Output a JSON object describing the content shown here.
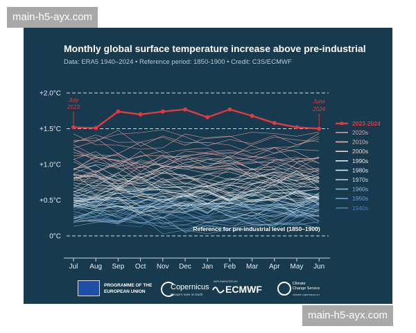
{
  "watermark": "main-h5-ayx.com",
  "chart_data": {
    "type": "line",
    "title": "Monthly global surface temperature increase above pre-industrial",
    "subtitle": "Data: ERA5 1940–2024 • Reference period: 1850-1900 • Credit: C3S/ECMWF",
    "categories": [
      "Jul",
      "Aug",
      "Sep",
      "Oct",
      "Nov",
      "Dec",
      "Jan",
      "Feb",
      "Mar",
      "Apr",
      "May",
      "Jun"
    ],
    "y_ticks": [
      {
        "value": 2.0,
        "label": "+2.0°C"
      },
      {
        "value": 1.5,
        "label": "+1.5°C"
      },
      {
        "value": 1.0,
        "label": "+1.0°C"
      },
      {
        "value": 0.5,
        "label": "+0.5°C"
      },
      {
        "value": 0.0,
        "label": "0°C"
      }
    ],
    "ylim": [
      -0.3,
      2.1
    ],
    "grid": "dashed at +2.0°C, +1.5°C and 0°C",
    "legend_position": "right",
    "highlight": {
      "name": "2023-2024",
      "color": "#e0393e",
      "values": [
        1.52,
        1.51,
        1.74,
        1.7,
        1.74,
        1.77,
        1.66,
        1.77,
        1.68,
        1.58,
        1.52,
        1.5
      ]
    },
    "decades": [
      {
        "name": "2020s",
        "color": "#e5a3a0",
        "center": 1.2
      },
      {
        "name": "2010s",
        "color": "#e3b7b2",
        "center": 0.98
      },
      {
        "name": "2000s",
        "color": "#e6d5cc",
        "center": 0.82
      },
      {
        "name": "1990s",
        "color": "#ebe9e7",
        "center": 0.68
      },
      {
        "name": "1980s",
        "color": "#dfe7ec",
        "center": 0.55
      },
      {
        "name": "1970s",
        "color": "#c6d8e3",
        "center": 0.43
      },
      {
        "name": "1960s",
        "color": "#8fb7d1",
        "center": 0.37
      },
      {
        "name": "1950s",
        "color": "#6a9fc8",
        "center": 0.32
      },
      {
        "name": "1940s",
        "color": "#4a7fb9",
        "center": 0.36
      }
    ],
    "annotations": {
      "start": {
        "text_line1": "July",
        "text_line2": "2023"
      },
      "end": {
        "text_line1": "June",
        "text_line2": "2024"
      },
      "reference": "Reference for pre-industrial level (1850–1900)"
    }
  },
  "footer": {
    "eu_line1": "PROGRAMME OF THE",
    "eu_line2": "EUROPEAN UNION",
    "copernicus": "Copernicus",
    "copernicus_sub": "Europe's eyes on Earth",
    "ecmwf_sub": "IMPLEMENTED BY",
    "ecmwf": "ECMWF",
    "c3s_line1": "Climate",
    "c3s_line2": "Change Service",
    "c3s_url": "climate.copernicus.eu"
  }
}
